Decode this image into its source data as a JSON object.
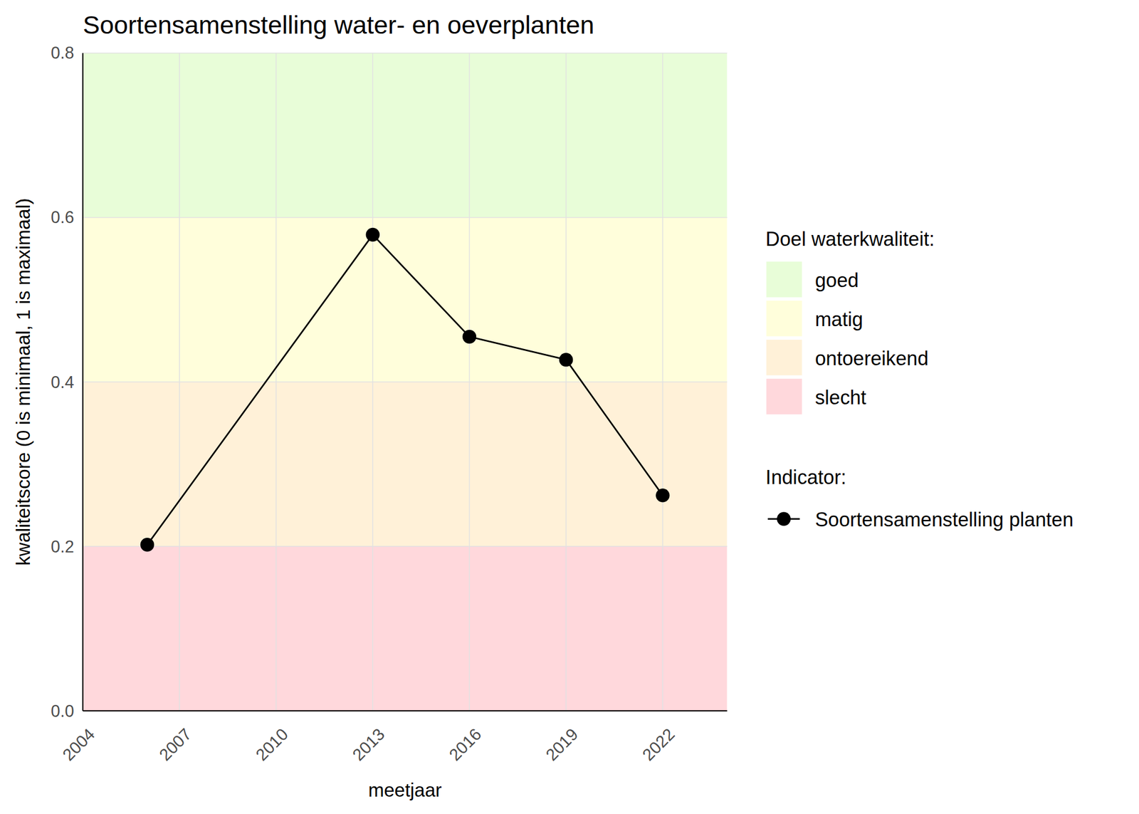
{
  "chart_data": {
    "type": "line",
    "title": "Soortensamenstelling water- en oeverplanten",
    "x_label": "meetjaar",
    "y_label": "kwaliteitscore (0 is minimaal, 1 is maximaal)",
    "x": [
      2006,
      2013,
      2016,
      2019,
      2022
    ],
    "series": [
      {
        "name": "Soortensamenstelling planten",
        "color": "#000000",
        "marker": "circle",
        "line_style": "solid",
        "values": [
          0.202,
          0.579,
          0.455,
          0.427,
          0.262
        ]
      }
    ],
    "xlim": [
      2004,
      2024
    ],
    "xticks": [
      2004,
      2007,
      2010,
      2013,
      2016,
      2019,
      2022
    ],
    "ylim": [
      0,
      0.8
    ],
    "yticks": [
      {
        "value": 0,
        "label": "0.0"
      },
      {
        "value": 0.2,
        "label": "0.2"
      },
      {
        "value": 0.4,
        "label": "0.4"
      },
      {
        "value": 0.6,
        "label": "0.6"
      },
      {
        "value": 0.8,
        "label": "0.8"
      }
    ],
    "grid": true,
    "bands_title": "Doel waterkwaliteit:",
    "bands": [
      {
        "name": "goed",
        "color": "#e8fdd8",
        "from": 0.6,
        "to": 0.8
      },
      {
        "name": "matig",
        "color": "#fffedb",
        "from": 0.4,
        "to": 0.6
      },
      {
        "name": "ontoereikend",
        "color": "#fff1d8",
        "from": 0.2,
        "to": 0.4
      },
      {
        "name": "slecht",
        "color": "#ffd8dc",
        "from": 0,
        "to": 0.2
      }
    ],
    "legend_title": "Indicator:",
    "legend": "right"
  }
}
